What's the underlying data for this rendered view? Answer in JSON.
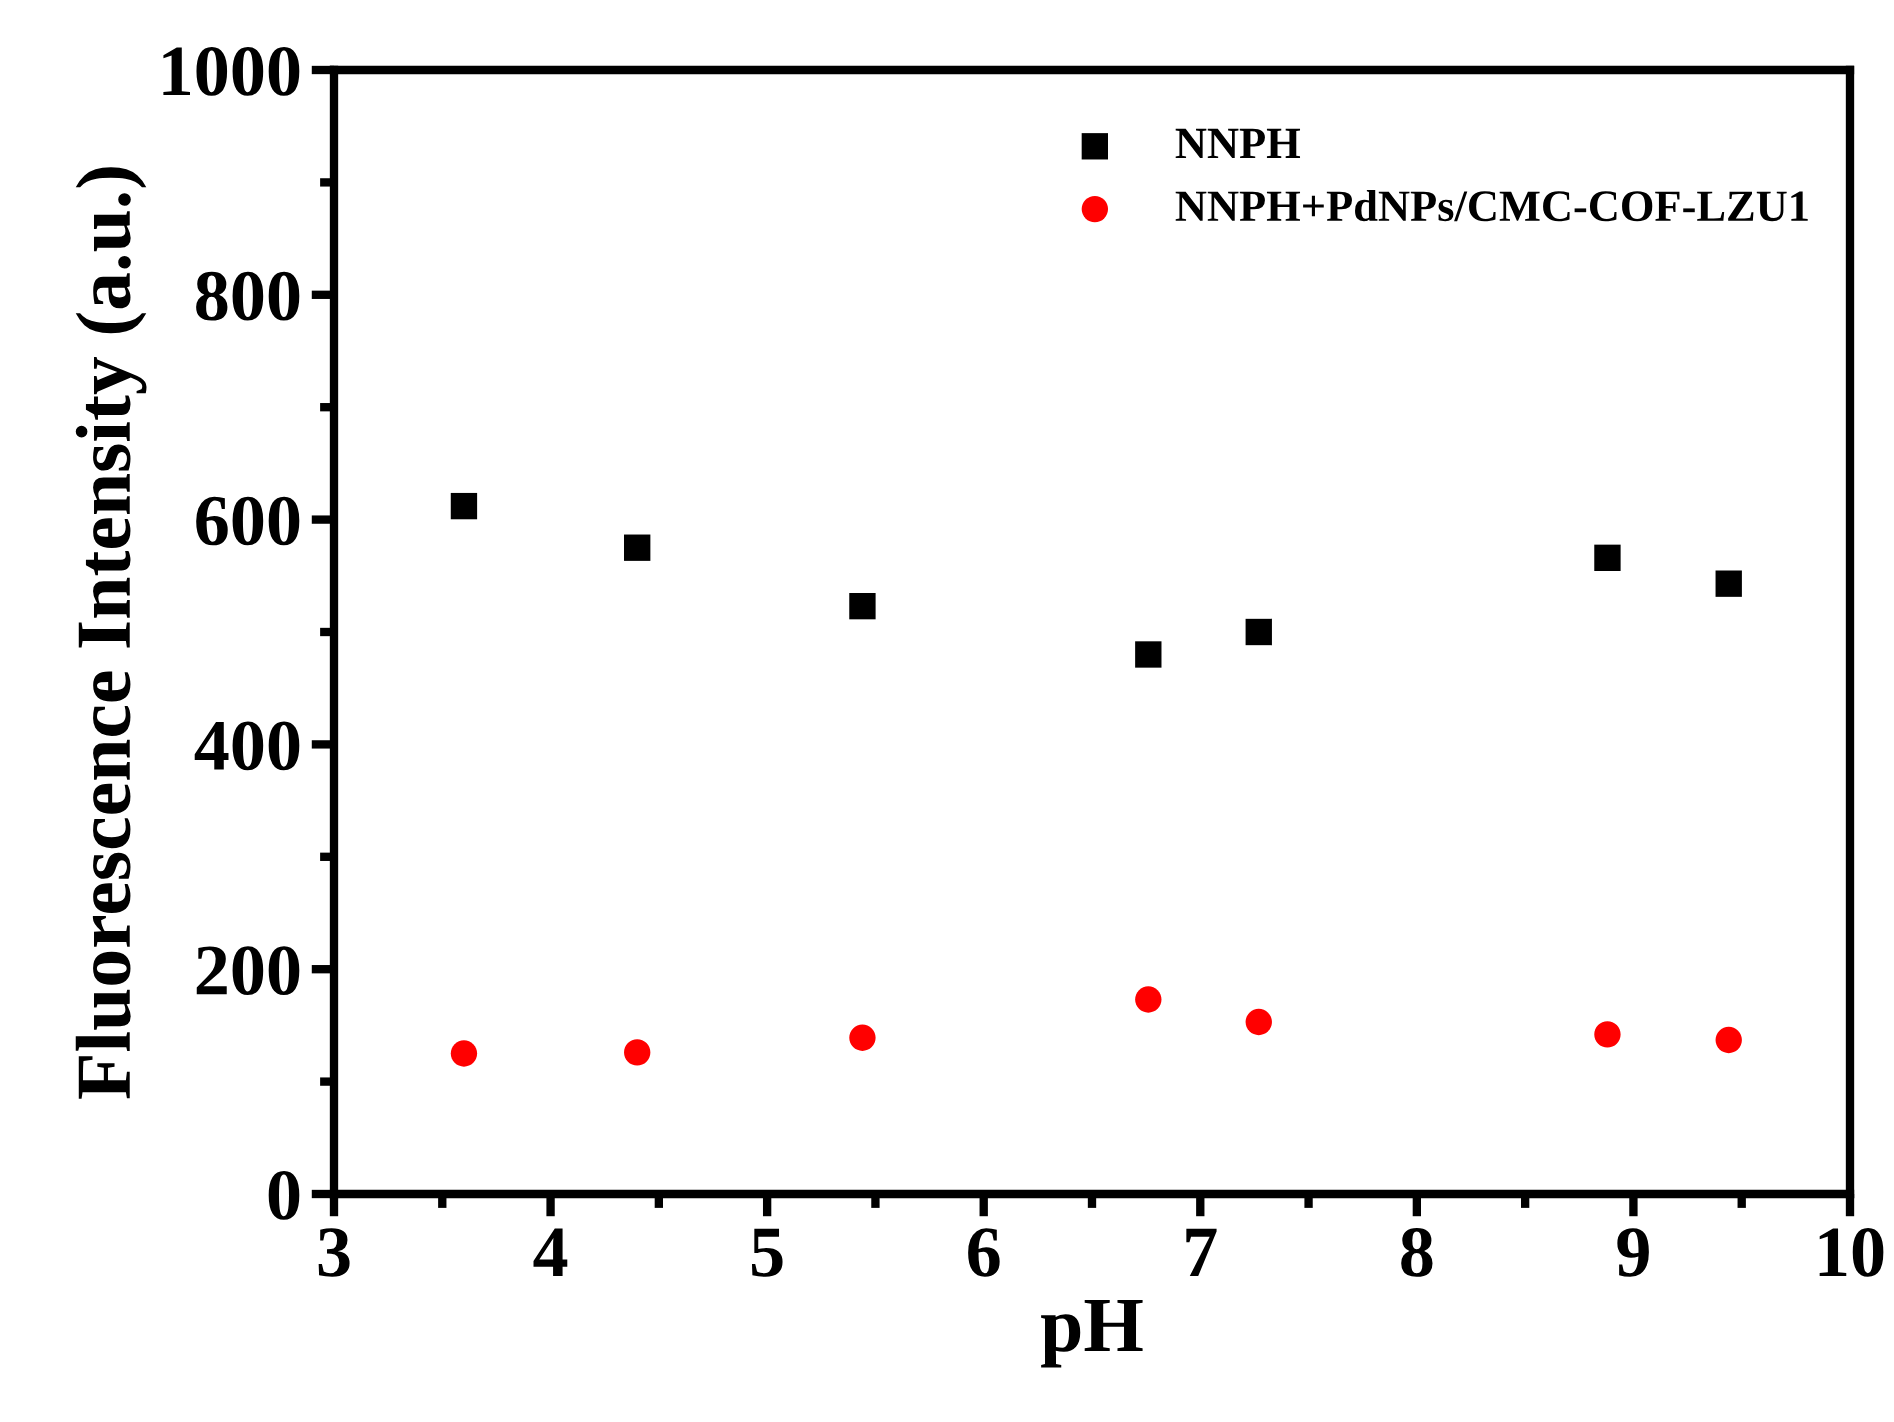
{
  "chart_data": {
    "type": "scatter",
    "xlabel": "pH",
    "ylabel": "Fluorescence Intensity (a.u.)",
    "x": [
      3.6,
      4.4,
      5.44,
      6.76,
      7.27,
      8.88,
      9.44
    ],
    "series": [
      {
        "name": "NNPH",
        "color": "#000000",
        "marker": "square",
        "values": [
          612,
          575,
          523,
          480,
          500,
          566,
          543
        ]
      },
      {
        "name": "NNPH+PdNPs/CMC-COF-LZU1",
        "color": "#ff0000",
        "marker": "circle",
        "values": [
          125,
          126,
          139,
          173,
          153,
          142,
          137
        ]
      }
    ],
    "xlim": [
      3,
      10
    ],
    "xticks": [
      3,
      4,
      5,
      6,
      7,
      8,
      9,
      10
    ],
    "ylim": [
      0,
      1000
    ],
    "yticks": [
      0,
      200,
      400,
      600,
      800,
      1000
    ],
    "grid": false,
    "legend": "top right"
  }
}
